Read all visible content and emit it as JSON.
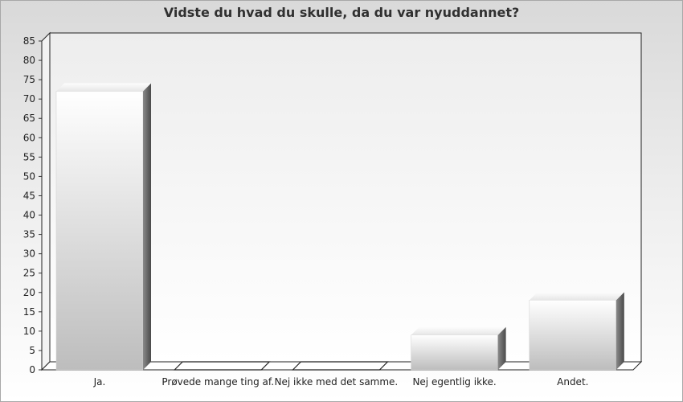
{
  "chart_data": {
    "type": "bar",
    "title": "Vidste du hvad du skulle, da du var nyuddannet?",
    "categories": [
      "Ja.",
      "Prøvede mange ting af.",
      "Nej ikke med det samme.",
      "Nej egentlig ikke.",
      "Andet."
    ],
    "values": [
      72,
      0,
      0,
      9,
      18
    ],
    "ylim": [
      0,
      85
    ],
    "yticks": [
      0,
      5,
      10,
      15,
      20,
      25,
      30,
      35,
      40,
      45,
      50,
      55,
      60,
      65,
      70,
      75,
      80,
      85
    ],
    "grid": false,
    "style": "3d-gradient"
  }
}
